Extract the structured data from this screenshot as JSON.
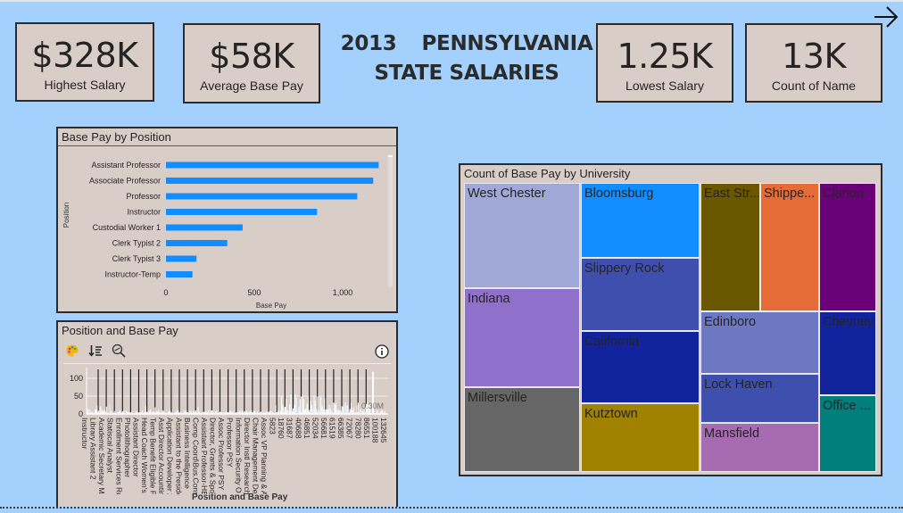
{
  "header": {
    "title_year": "2013",
    "title_state": "PENNSYLVANIA",
    "title_line2": "STATE SALARIES",
    "nav_arrow": "right-arrow-icon"
  },
  "kpis": [
    {
      "value": "$328K",
      "label": "Highest Salary"
    },
    {
      "value": "$58K",
      "label": "Average Base Pay"
    },
    {
      "value": "1.25K",
      "label": "Lowest Salary"
    },
    {
      "value": "13K",
      "label": "Count of Name"
    }
  ],
  "chart_data": [
    {
      "type": "bar",
      "orientation": "horizontal",
      "title": "Base Pay by Position",
      "xlabel": "Base Pay",
      "ylabel": "Position",
      "categories": [
        "Assistant Professor",
        "Associate Professor",
        "Professor",
        "Instructor",
        "Custodial Worker 1",
        "Clerk Typist 2",
        "Clerk Typist 3",
        "Instructor-Temp"
      ],
      "values": [
        1204,
        1173,
        1083,
        855,
        434,
        347,
        173,
        150
      ],
      "xticks": [
        "0",
        "500",
        "1,000"
      ],
      "xlim": [
        0,
        1300
      ],
      "color": "#118dff"
    },
    {
      "type": "bar",
      "title": "Position and Base Pay",
      "xlabel": "Position and Base Pay",
      "yticks": [
        "100",
        "50",
        "0"
      ],
      "ylim": [
        0,
        130
      ],
      "annotation": "0.30M",
      "categories": [
        "Instructor",
        "Library Assistant 2",
        "Academic Secretary MA",
        "Statiscal Analyst",
        "Enrollment Services Rep",
        "Photolithographer",
        "Assistant Director",
        "Head Coach Women's Tr",
        "Temp Benefit Eligible FT",
        "Asst Director Accounting",
        "Application Developer 2",
        "Assistant to the Preside",
        "Business Intelligence",
        "Comp Coord\\Bus.Consu",
        "Assistant Professor-HE",
        "Director, Grants & Spo",
        "Assoc Professor PSY",
        "Professor PSY",
        "Information Security O",
        "Director Instl Research",
        "Chair Management Dept",
        "Assoc VP Planning & A",
        "5823",
        "18760",
        "31687",
        "40688",
        "46851",
        "52034",
        "56681",
        "61519",
        "66385",
        "72067",
        "78280",
        "86551",
        "100188",
        "132645"
      ]
    },
    {
      "type": "treemap",
      "title": "Count of Base Pay by University",
      "items": [
        {
          "label": "West Chester",
          "color": "#a0a8d8"
        },
        {
          "label": "Indiana",
          "color": "#8f70cb"
        },
        {
          "label": "Millersville",
          "color": "#666666"
        },
        {
          "label": "Bloomsburg",
          "color": "#118dff"
        },
        {
          "label": "Slippery Rock",
          "color": "#3f4fae"
        },
        {
          "label": "California",
          "color": "#12239e"
        },
        {
          "label": "Kutztown",
          "color": "#a08100"
        },
        {
          "label": "East Str...",
          "color": "#6b5700"
        },
        {
          "label": "Shippe...",
          "color": "#e66c37"
        },
        {
          "label": "Clarion",
          "color": "#6b007b"
        },
        {
          "label": "Edinboro",
          "color": "#6d78c2"
        },
        {
          "label": "Lock Haven",
          "color": "#3f4fae"
        },
        {
          "label": "Mansfield",
          "color": "#a66bb0"
        },
        {
          "label": "Cheyney",
          "color": "#12239e"
        },
        {
          "label": "Office ...",
          "color": "#007f7b"
        }
      ]
    }
  ],
  "colors": {
    "background": "#a3d0fc",
    "card": "#d9cdc8",
    "border": "#2b2b2b"
  }
}
